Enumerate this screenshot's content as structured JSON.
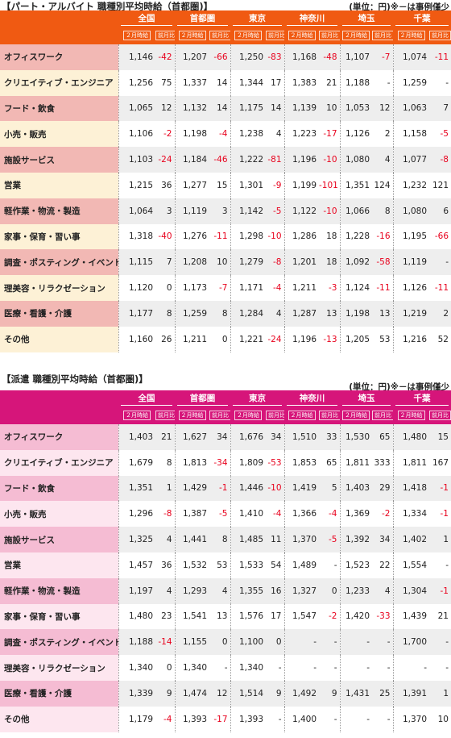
{
  "part": {
    "title": "【パート・アルバイト 職種別平均時給（首都圏)】",
    "unit_note": "(単位：円)※－は事例僅少",
    "regions": [
      "全国",
      "首都圏",
      "東京",
      "神奈川",
      "埼玉",
      "千葉"
    ],
    "sub_headers": [
      "２月時給",
      "前月比"
    ],
    "colors": {
      "header": "#f05a12",
      "cat_dark": "#f2b8b4",
      "cat_light": "#fdf1d6",
      "row_dark": "#eeeeee",
      "row_light": "#ffffff"
    },
    "rows": [
      {
        "cat": "オフィスワーク",
        "vals": [
          "1,146",
          "-42",
          "1,207",
          "-66",
          "1,250",
          "-83",
          "1,168",
          "-48",
          "1,107",
          "-7",
          "1,074",
          "-11"
        ]
      },
      {
        "cat": "クリエイティブ・エンジニア",
        "vals": [
          "1,256",
          "75",
          "1,337",
          "14",
          "1,344",
          "17",
          "1,383",
          "21",
          "1,188",
          "-",
          "1,259",
          "-"
        ]
      },
      {
        "cat": "フード・飲食",
        "vals": [
          "1,065",
          "12",
          "1,132",
          "14",
          "1,175",
          "14",
          "1,139",
          "10",
          "1,053",
          "12",
          "1,063",
          "7"
        ]
      },
      {
        "cat": "小売・販売",
        "vals": [
          "1,106",
          "-2",
          "1,198",
          "-4",
          "1,238",
          "4",
          "1,223",
          "-17",
          "1,126",
          "2",
          "1,158",
          "-5"
        ]
      },
      {
        "cat": "施設サービス",
        "vals": [
          "1,103",
          "-24",
          "1,184",
          "-46",
          "1,222",
          "-81",
          "1,196",
          "-10",
          "1,080",
          "4",
          "1,077",
          "-8"
        ]
      },
      {
        "cat": "営業",
        "vals": [
          "1,215",
          "36",
          "1,277",
          "15",
          "1,301",
          "-9",
          "1,199",
          "-101",
          "1,351",
          "124",
          "1,232",
          "121"
        ]
      },
      {
        "cat": "軽作業・物流・製造",
        "vals": [
          "1,064",
          "3",
          "1,119",
          "3",
          "1,142",
          "-5",
          "1,122",
          "-10",
          "1,066",
          "8",
          "1,080",
          "6"
        ]
      },
      {
        "cat": "家事・保育・習い事",
        "vals": [
          "1,318",
          "-40",
          "1,276",
          "-11",
          "1,298",
          "-10",
          "1,286",
          "18",
          "1,228",
          "-16",
          "1,195",
          "-66"
        ]
      },
      {
        "cat": "調査・ポスティング・イベント",
        "vals": [
          "1,115",
          "7",
          "1,208",
          "10",
          "1,279",
          "-8",
          "1,201",
          "18",
          "1,092",
          "-58",
          "1,119",
          "-"
        ]
      },
      {
        "cat": "理美容・リラクゼーション",
        "vals": [
          "1,120",
          "0",
          "1,173",
          "-7",
          "1,171",
          "-4",
          "1,211",
          "-3",
          "1,124",
          "-11",
          "1,126",
          "-11"
        ]
      },
      {
        "cat": "医療・看護・介護",
        "vals": [
          "1,177",
          "8",
          "1,259",
          "8",
          "1,284",
          "4",
          "1,287",
          "13",
          "1,198",
          "13",
          "1,219",
          "2"
        ]
      },
      {
        "cat": "その他",
        "vals": [
          "1,160",
          "26",
          "1,211",
          "0",
          "1,221",
          "-24",
          "1,196",
          "-13",
          "1,205",
          "53",
          "1,216",
          "52"
        ]
      }
    ]
  },
  "haken": {
    "title": "【派遣 職種別平均時給（首都圏)】",
    "unit_note": "(単位：円)※－は事例僅少",
    "regions": [
      "全国",
      "首都圏",
      "東京",
      "神奈川",
      "埼玉",
      "千葉"
    ],
    "sub_headers": [
      "２月時給",
      "前月比"
    ],
    "colors": {
      "header": "#d6157a",
      "cat_dark": "#f5bcd3",
      "cat_light": "#fde6ef",
      "row_dark": "#eeeeee",
      "row_light": "#ffffff"
    },
    "rows": [
      {
        "cat": "オフィスワーク",
        "vals": [
          "1,403",
          "21",
          "1,627",
          "34",
          "1,676",
          "34",
          "1,510",
          "33",
          "1,530",
          "65",
          "1,480",
          "15"
        ]
      },
      {
        "cat": "クリエイティブ・エンジニア",
        "vals": [
          "1,679",
          "8",
          "1,813",
          "-34",
          "1,809",
          "-53",
          "1,853",
          "65",
          "1,811",
          "333",
          "1,811",
          "167"
        ]
      },
      {
        "cat": "フード・飲食",
        "vals": [
          "1,351",
          "1",
          "1,429",
          "-1",
          "1,446",
          "-10",
          "1,419",
          "5",
          "1,403",
          "29",
          "1,418",
          "-1"
        ]
      },
      {
        "cat": "小売・販売",
        "vals": [
          "1,296",
          "-8",
          "1,387",
          "-5",
          "1,410",
          "-4",
          "1,366",
          "-4",
          "1,369",
          "-2",
          "1,334",
          "-1"
        ]
      },
      {
        "cat": "施設サービス",
        "vals": [
          "1,325",
          "4",
          "1,441",
          "8",
          "1,485",
          "11",
          "1,370",
          "-5",
          "1,392",
          "34",
          "1,402",
          "1"
        ]
      },
      {
        "cat": "営業",
        "vals": [
          "1,457",
          "36",
          "1,532",
          "53",
          "1,533",
          "54",
          "1,489",
          "-",
          "1,523",
          "22",
          "1,554",
          "-"
        ]
      },
      {
        "cat": "軽作業・物流・製造",
        "vals": [
          "1,197",
          "4",
          "1,293",
          "4",
          "1,355",
          "16",
          "1,327",
          "0",
          "1,233",
          "4",
          "1,304",
          "-1"
        ]
      },
      {
        "cat": "家事・保育・習い事",
        "vals": [
          "1,480",
          "23",
          "1,541",
          "13",
          "1,576",
          "17",
          "1,547",
          "-2",
          "1,420",
          "-33",
          "1,439",
          "21"
        ]
      },
      {
        "cat": "調査・ポスティング・イベント",
        "vals": [
          "1,188",
          "-14",
          "1,155",
          "0",
          "1,100",
          "0",
          "-",
          "-",
          "-",
          "-",
          "1,700",
          "-"
        ]
      },
      {
        "cat": "理美容・リラクゼーション",
        "vals": [
          "1,340",
          "0",
          "1,340",
          "-",
          "1,340",
          "-",
          "-",
          "-",
          "-",
          "-",
          "-",
          "-"
        ]
      },
      {
        "cat": "医療・看護・介護",
        "vals": [
          "1,339",
          "9",
          "1,474",
          "12",
          "1,514",
          "9",
          "1,492",
          "9",
          "1,431",
          "25",
          "1,391",
          "1"
        ]
      },
      {
        "cat": "その他",
        "vals": [
          "1,179",
          "-4",
          "1,393",
          "-17",
          "1,393",
          "-",
          "1,400",
          "-",
          "-",
          "-",
          "1,370",
          "10"
        ]
      }
    ]
  }
}
